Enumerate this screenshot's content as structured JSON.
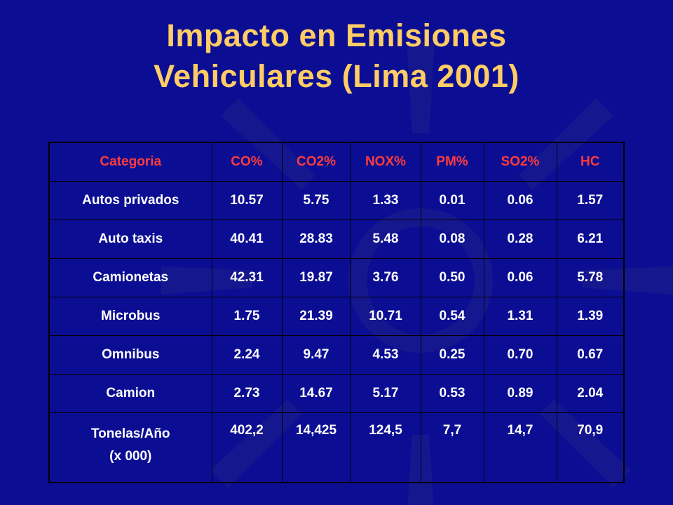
{
  "title": {
    "line1": "Impacto en Emisiones",
    "line2": "Vehiculares (Lima 2001)"
  },
  "colors": {
    "background": "#0b0e93",
    "title": "#ffcc66",
    "header_text": "#ff3b3b",
    "cell_text": "#ffffff",
    "watermark": "#15178f"
  },
  "watermark_icon": "sun-emblem-icon",
  "table": {
    "headers": [
      "Categoria",
      "CO%",
      "CO2%",
      "NOX%",
      "PM%",
      "SO2%",
      "HC"
    ],
    "rows": [
      [
        "Autos privados",
        "10.57",
        "5.75",
        "1.33",
        "0.01",
        "0.06",
        "1.57"
      ],
      [
        "Auto taxis",
        "40.41",
        "28.83",
        "5.48",
        "0.08",
        "0.28",
        "6.21"
      ],
      [
        "Camionetas",
        "42.31",
        "19.87",
        "3.76",
        "0.50",
        "0.06",
        "5.78"
      ],
      [
        "Microbus",
        "1.75",
        "21.39",
        "10.71",
        "0.54",
        "1.31",
        "1.39"
      ],
      [
        "Omnibus",
        "2.24",
        "9.47",
        "4.53",
        "0.25",
        "0.70",
        "0.67"
      ],
      [
        "Camion",
        "2.73",
        "14.67",
        "5.17",
        "0.53",
        "0.89",
        "2.04"
      ]
    ],
    "total_row": {
      "label_line1": "Tonelas/Año",
      "label_line2": "(x 000)",
      "values": [
        "402,2",
        "14,425",
        "124,5",
        "7,7",
        "14,7",
        "70,9"
      ]
    }
  }
}
